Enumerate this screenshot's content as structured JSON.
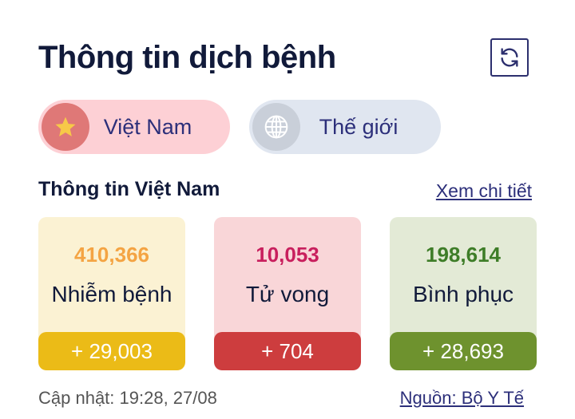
{
  "header": {
    "title": "Thông tin dịch bệnh",
    "refresh_icon": "refresh-icon"
  },
  "tabs": [
    {
      "label": "Việt Nam",
      "icon": "star-icon",
      "active": true
    },
    {
      "label": "Thế giới",
      "icon": "globe-icon",
      "active": false
    }
  ],
  "section": {
    "title": "Thông tin Việt Nam",
    "detail_link": "Xem chi tiết"
  },
  "cards": [
    {
      "value": "410,366",
      "label": "Nhiễm bệnh",
      "delta": "+ 29,003",
      "bg": "#fbf2d3",
      "value_color": "#f4a443",
      "delta_bg": "#ebbb17"
    },
    {
      "value": "10,053",
      "label": "Tử vong",
      "delta": "+ 704",
      "bg": "#f9d6d8",
      "value_color": "#c81f5d",
      "delta_bg": "#cd3d3e"
    },
    {
      "value": "198,614",
      "label": "Bình phục",
      "delta": "+ 28,693",
      "bg": "#e3ead6",
      "value_color": "#3e7d28",
      "delta_bg": "#6e922e"
    }
  ],
  "footer": {
    "updated": "Cập nhật: 19:28, 27/08",
    "source": "Nguồn: Bộ Y Tế"
  }
}
